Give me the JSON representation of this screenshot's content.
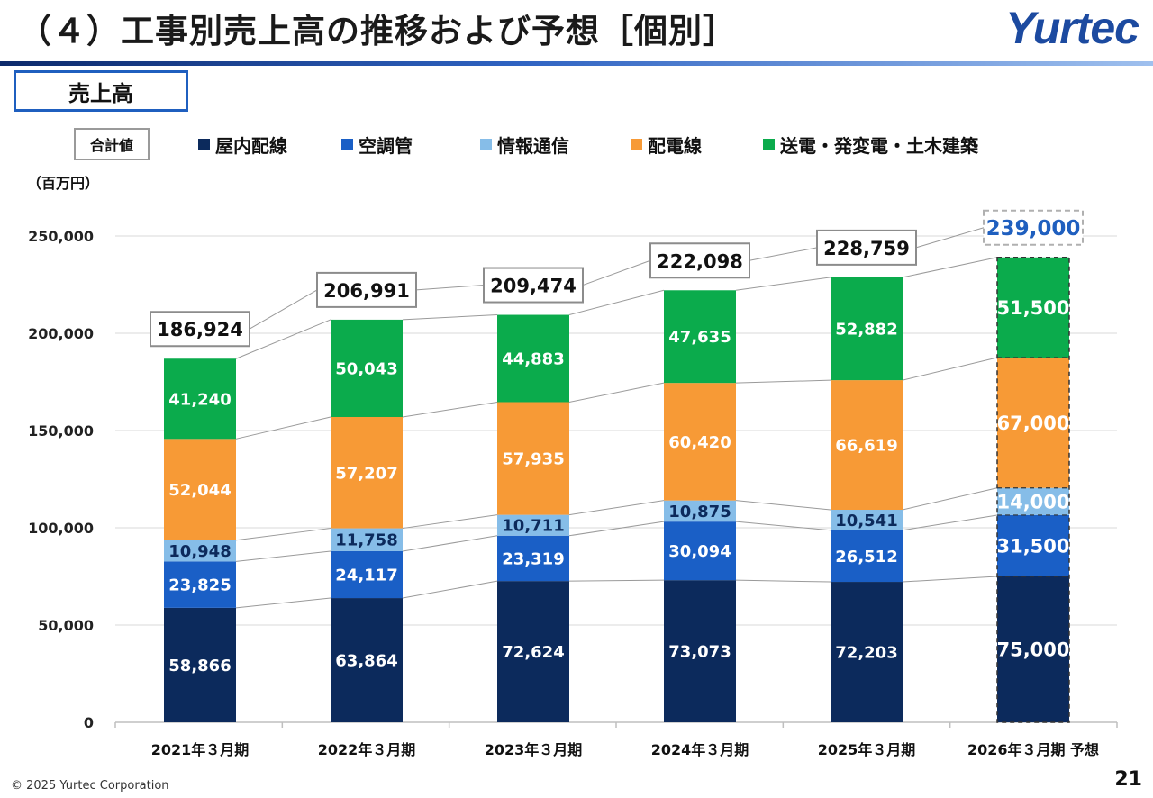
{
  "header": {
    "title": "（４）工事別売上高の推移および予想［個別］",
    "logo_text": "Yurtec",
    "section_label": "売上高"
  },
  "legend": {
    "total_label": "合計値",
    "series_labels": [
      "屋内配線",
      "空調管",
      "情報通信",
      "配電線",
      "送電・発変電・土木建築"
    ]
  },
  "unit_label": "（百万円）",
  "chart_data": {
    "type": "bar",
    "stacked": true,
    "title": "売上高",
    "ylabel": "百万円",
    "ylim": [
      0,
      250000
    ],
    "yticks": [
      0,
      50000,
      100000,
      150000,
      200000,
      250000
    ],
    "ytick_labels": [
      "0",
      "50,000",
      "100,000",
      "150,000",
      "200,000",
      "250,000"
    ],
    "categories": [
      "2021年３月期",
      "2022年３月期",
      "2023年３月期",
      "2024年３月期",
      "2025年３月期",
      "2026年３月期 予想"
    ],
    "forecast_index": 5,
    "series": [
      {
        "name": "屋内配線",
        "color": "#0c2a5c",
        "values": [
          58866,
          63864,
          72624,
          73073,
          72203,
          75000
        ],
        "labels": [
          "58,866",
          "63,864",
          "72,624",
          "73,073",
          "72,203",
          "75,000"
        ]
      },
      {
        "name": "空調管",
        "color": "#1a5fc6",
        "values": [
          23825,
          24117,
          23319,
          30094,
          26512,
          31500
        ],
        "labels": [
          "23,825",
          "24,117",
          "23,319",
          "30,094",
          "26,512",
          "31,500"
        ]
      },
      {
        "name": "情報通信",
        "color": "#86bde8",
        "values": [
          10948,
          11758,
          10711,
          10875,
          10541,
          14000
        ],
        "labels": [
          "10,948",
          "11,758",
          "10,711",
          "10,875",
          "10,541",
          "14,000"
        ]
      },
      {
        "name": "配電線",
        "color": "#f79a36",
        "values": [
          52044,
          57207,
          57935,
          60420,
          66619,
          67000
        ],
        "labels": [
          "52,044",
          "57,207",
          "57,935",
          "60,420",
          "66,619",
          "67,000"
        ]
      },
      {
        "name": "送電・発変電・土木建築",
        "color": "#0bab4c",
        "values": [
          41240,
          50043,
          44883,
          47635,
          52882,
          51500
        ],
        "labels": [
          "41,240",
          "50,043",
          "44,883",
          "47,635",
          "52,882",
          "51,500"
        ]
      }
    ],
    "totals": [
      186924,
      206991,
      209474,
      222098,
      228759,
      239000
    ],
    "total_labels": [
      "186,924",
      "206,991",
      "209,474",
      "222,098",
      "228,759",
      "239,000"
    ],
    "forecast_total_color": "#1f5fbf"
  },
  "footer": {
    "copyright": "© 2025 Yurtec Corporation",
    "page_number": "21"
  }
}
